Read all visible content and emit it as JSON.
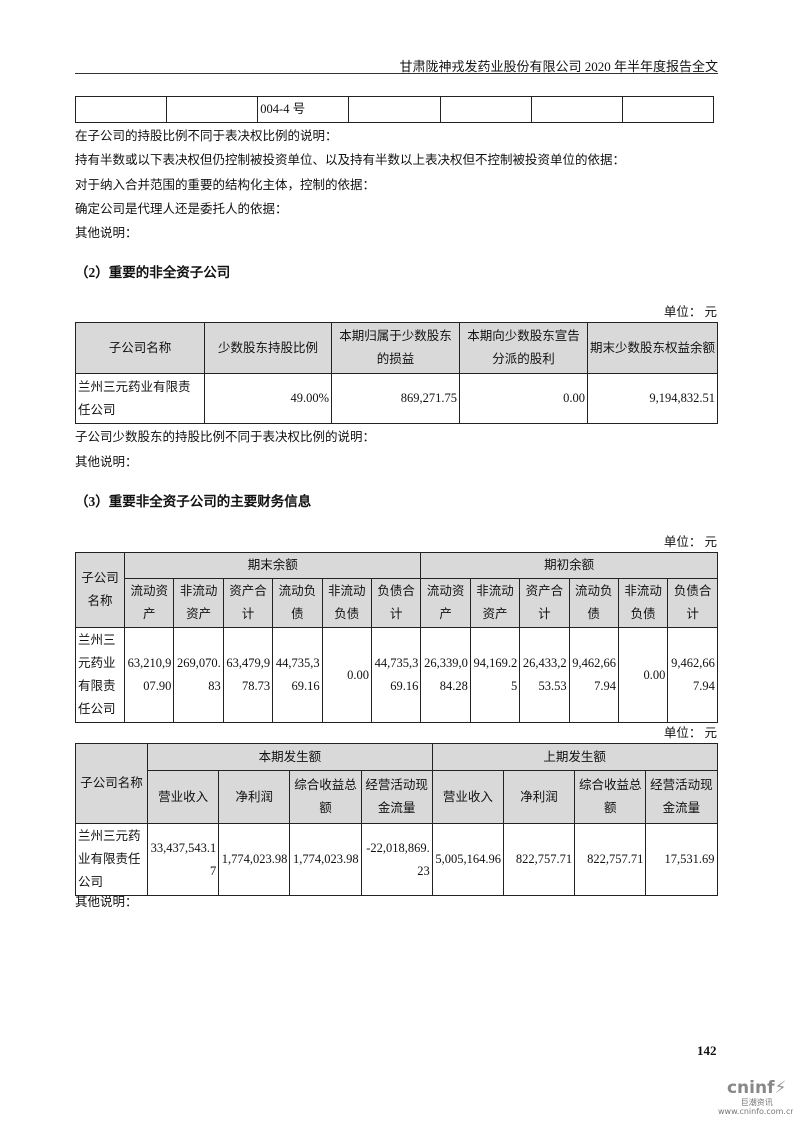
{
  "header": "甘肃陇神戎发药业股份有限公司 2020 年半年度报告全文",
  "top_table": {
    "cells": [
      "",
      "",
      "004-4 号",
      "",
      "",
      "",
      ""
    ]
  },
  "notes1": [
    "在子公司的持股比例不同于表决权比例的说明：",
    "持有半数或以下表决权但仍控制被投资单位、以及持有半数以上表决权但不控制被投资单位的依据：",
    "对于纳入合并范围的重要的结构化主体，控制的依据：",
    "确定公司是代理人还是委托人的依据：",
    "其他说明："
  ],
  "section2": {
    "title": "（2）重要的非全资子公司",
    "unit": "单位： 元",
    "headers": [
      "子公司名称",
      "少数股东持股比例",
      "本期归属于少数股东的损益",
      "本期向少数股东宣告分派的股利",
      "期末少数股东权益余额"
    ],
    "row": [
      "兰州三元药业有限责任公司",
      "49.00%",
      "869,271.75",
      "0.00",
      "9,194,832.51"
    ],
    "notes": [
      "子公司少数股东的持股比例不同于表决权比例的说明：",
      "其他说明："
    ]
  },
  "section3": {
    "title": "（3）重要非全资子公司的主要财务信息",
    "unit": "单位： 元",
    "table1": {
      "name_header": "子公司名称",
      "group_headers": [
        "期末余额",
        "期初余额"
      ],
      "sub_headers": [
        "流动资产",
        "非流动资产",
        "资产合计",
        "流动负债",
        "非流动负债",
        "负债合计",
        "流动资产",
        "非流动资产",
        "资产合计",
        "流动负债",
        "非流动负债",
        "负债合计"
      ],
      "row_name": "兰州三元药业有限责任公司",
      "values": [
        "63,210,907.90",
        "269,070.83",
        "63,479,978.73",
        "44,735,369.16",
        "0.00",
        "44,735,369.16",
        "26,339,084.28",
        "94,169.25",
        "26,433,253.53",
        "9,462,667.94",
        "0.00",
        "9,462,667.94"
      ]
    },
    "unit2": "单位： 元",
    "table2": {
      "name_header": "子公司名称",
      "group_headers": [
        "本期发生额",
        "上期发生额"
      ],
      "sub_headers": [
        "营业收入",
        "净利润",
        "综合收益总额",
        "经营活动现金流量",
        "营业收入",
        "净利润",
        "综合收益总额",
        "经营活动现金流量"
      ],
      "row_name": "兰州三元药业有限责任公司",
      "values": [
        "33,437,543.17",
        "1,774,023.98",
        "1,774,023.98",
        "-22,018,869.23",
        "5,005,164.96",
        "822,757.71",
        "822,757.71",
        "17,531.69"
      ]
    },
    "other": "其他说明："
  },
  "page_number": "142",
  "logo": {
    "brand": "cninf",
    "cn": "巨潮资讯",
    "url": "www.cninfo.com.cn"
  }
}
